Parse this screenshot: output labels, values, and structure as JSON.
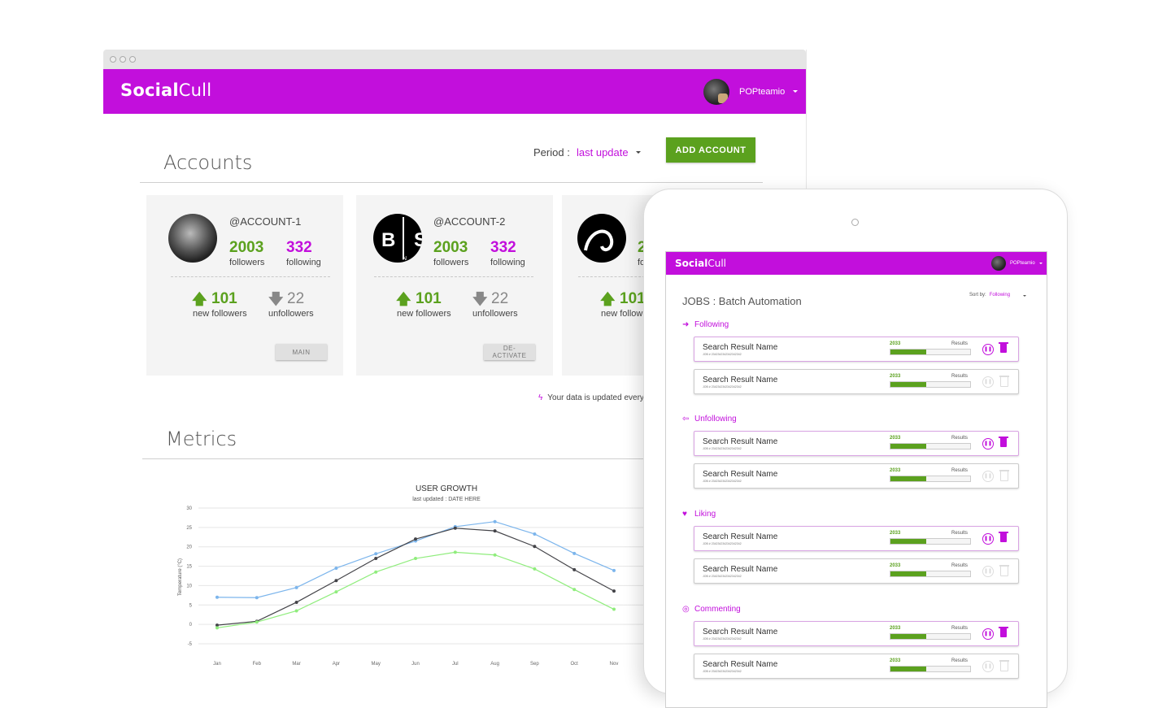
{
  "app": {
    "logo_bold": "Social",
    "logo_light": "Cull"
  },
  "user": {
    "name": "POPteamio"
  },
  "accounts_section": {
    "title": "Accounts",
    "period_label": "Period :",
    "period_value": "last update",
    "add_button": "ADD ACCOUNT",
    "updated_note": "Your data is updated every"
  },
  "accounts": [
    {
      "handle": "@ACCOUNT-1",
      "followers": "2003",
      "followers_label": "followers",
      "following": "332",
      "following_label": "following",
      "new_followers": "101",
      "new_followers_label": "new followers",
      "unfollowers": "22",
      "unfollowers_label": "unfollowers",
      "button": "MAIN"
    },
    {
      "handle": "@ACCOUNT-2",
      "followers": "2003",
      "followers_label": "followers",
      "following": "332",
      "following_label": "following",
      "new_followers": "101",
      "new_followers_label": "new followers",
      "unfollowers": "22",
      "unfollowers_label": "unfollowers",
      "button": "DE-ACTIVATE"
    },
    {
      "handle": "",
      "followers": "2",
      "followers_label": "fo",
      "new_followers": "101",
      "new_followers_label": "new follow"
    }
  ],
  "metrics": {
    "title": "Metrics"
  },
  "chart_data": {
    "type": "line",
    "title": "USER GROWTH",
    "subtitle": "last updated : DATE HERE",
    "ylabel": "Temperature (°C)",
    "xlabel": "",
    "ylim": [
      -5,
      30
    ],
    "yticks": [
      "30",
      "25",
      "20",
      "15",
      "10",
      "5",
      "0",
      "-5"
    ],
    "categories": [
      "Jan",
      "Feb",
      "Mar",
      "Apr",
      "May",
      "Jun",
      "Jul",
      "Aug",
      "Sep",
      "Oct",
      "Nov"
    ],
    "grid": true,
    "series": [
      {
        "color": "#7cb5ec",
        "values": [
          7.0,
          6.9,
          9.5,
          14.5,
          18.2,
          21.5,
          25.2,
          26.5,
          23.3,
          18.3,
          13.9
        ]
      },
      {
        "color": "#434348",
        "values": [
          -0.2,
          0.8,
          5.7,
          11.3,
          17.0,
          22.0,
          24.8,
          24.1,
          20.1,
          14.1,
          8.6
        ]
      },
      {
        "color": "#90ed7d",
        "values": [
          -0.9,
          0.6,
          3.5,
          8.4,
          13.5,
          17.0,
          18.6,
          17.9,
          14.3,
          9.0,
          3.9
        ]
      }
    ]
  },
  "tablet": {
    "logo_bold": "Social",
    "logo_light": "Cull",
    "user": "POPteamio",
    "title": "JOBS : Batch Automation",
    "sort_label": "Sort by:",
    "sort_value": "Following",
    "groups": [
      {
        "name": "Following",
        "icon": "arrow-right-icon"
      },
      {
        "name": "Unfollowing",
        "icon": "arrow-left-icon"
      },
      {
        "name": "Liking",
        "icon": "heart-icon"
      },
      {
        "name": "Commenting",
        "icon": "comment-icon"
      }
    ],
    "job": {
      "name": "Search Result Name",
      "id": "JOB # 2342342342342342342",
      "count": "2033",
      "results": "Results",
      "progress": 0.45
    }
  }
}
